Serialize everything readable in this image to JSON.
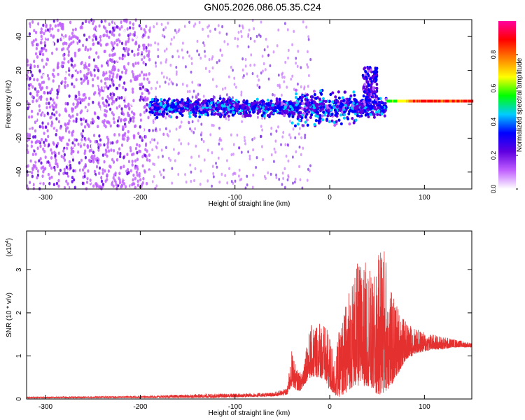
{
  "title": "GN05.2026.086.05.35.C24",
  "chart_data": [
    {
      "type": "heatmap",
      "title": "GN05.2026.086.05.35.C24",
      "xlabel": "Height of straight line (km)",
      "ylabel": "Frequency (Hz)",
      "xlim": [
        -320,
        150
      ],
      "ylim": [
        -50,
        50
      ],
      "xticks": [
        -300,
        -200,
        -100,
        0,
        100
      ],
      "xtick_labels": [
        "-300",
        "-200",
        "-100",
        "0",
        "100"
      ],
      "yticks": [
        -40,
        -20,
        0,
        20,
        40
      ],
      "ytick_labels": [
        "-40",
        "-20",
        "0",
        "20",
        "40"
      ],
      "colorbar": {
        "label": "Normalized spectral amplitude",
        "range": [
          0,
          1
        ],
        "ticks": [
          0.0,
          0.2,
          0.4,
          0.6,
          0.8
        ],
        "tick_labels": [
          "0.0",
          "0.2",
          "0.4",
          "0.6",
          "0.8"
        ],
        "colors": [
          "#ffffff",
          "#c060ff",
          "#6000e0",
          "#0000ff",
          "#00ccff",
          "#00ff00",
          "#ffff00",
          "#ff8000",
          "#ff0000",
          "#ff00a0"
        ]
      },
      "features": [
        {
          "description": "broadband scatter",
          "x_range": [
            -320,
            -190
          ],
          "freq_range": [
            -50,
            50
          ],
          "amplitude": 0.1
        },
        {
          "description": "band near 0 Hz",
          "x_range": [
            -190,
            60
          ],
          "freq_center": -2,
          "amplitude": 0.3
        },
        {
          "description": "feature",
          "x_range": [
            35,
            50
          ],
          "freq_range": [
            0,
            22
          ],
          "amplitude": 0.25
        },
        {
          "description": "tone",
          "x_range": [
            60,
            150
          ],
          "freq_center": 1.5,
          "amplitude": 0.85
        }
      ]
    },
    {
      "type": "line",
      "xlabel": "Height of straight line (km)",
      "ylabel": "SNR (10 * v/v)",
      "y_multiplier_label": "(x10",
      "y_multiplier_exp": "4",
      "y_multiplier_close": ")",
      "xlim": [
        -320,
        150
      ],
      "ylim": [
        0,
        3.9
      ],
      "xticks": [
        -300,
        -200,
        -100,
        0,
        100
      ],
      "xtick_labels": [
        "-300",
        "-200",
        "-100",
        "0",
        "100"
      ],
      "yticks": [
        0,
        1,
        2,
        3
      ],
      "ytick_labels": [
        "0",
        "1",
        "2",
        "3"
      ],
      "series": [
        {
          "name": "SNR",
          "color": "#e53030",
          "x": [
            -320,
            -200,
            -130,
            -100,
            -60,
            -45,
            -40,
            -35,
            -30,
            -25,
            -20,
            -15,
            -10,
            -5,
            0,
            5,
            10,
            15,
            20,
            25,
            30,
            35,
            40,
            45,
            50,
            55,
            60,
            65,
            70,
            75,
            80,
            90,
            100,
            110,
            120,
            130,
            140,
            150
          ],
          "envelope_low": [
            0.02,
            0.03,
            0.03,
            0.04,
            0.06,
            0.1,
            0.3,
            0.2,
            0.2,
            0.4,
            0.5,
            0.5,
            0.5,
            0.4,
            0.2,
            0.1,
            0.05,
            0.1,
            0.2,
            0.3,
            0.3,
            0.3,
            0.3,
            0.2,
            0.1,
            0.1,
            0.2,
            0.3,
            0.5,
            0.7,
            0.9,
            1.05,
            1.1,
            1.15,
            1.15,
            1.2,
            1.2,
            1.2
          ],
          "envelope_high": [
            0.05,
            0.07,
            0.12,
            0.13,
            0.15,
            0.25,
            1.15,
            0.7,
            0.6,
            1.3,
            1.7,
            1.8,
            1.9,
            1.7,
            1.5,
            1.0,
            1.6,
            2.0,
            2.6,
            2.9,
            3.2,
            3.1,
            3.3,
            2.7,
            3.1,
            3.9,
            3.3,
            2.5,
            2.3,
            2.0,
            1.8,
            1.65,
            1.55,
            1.5,
            1.45,
            1.4,
            1.35,
            1.3
          ]
        }
      ]
    }
  ]
}
